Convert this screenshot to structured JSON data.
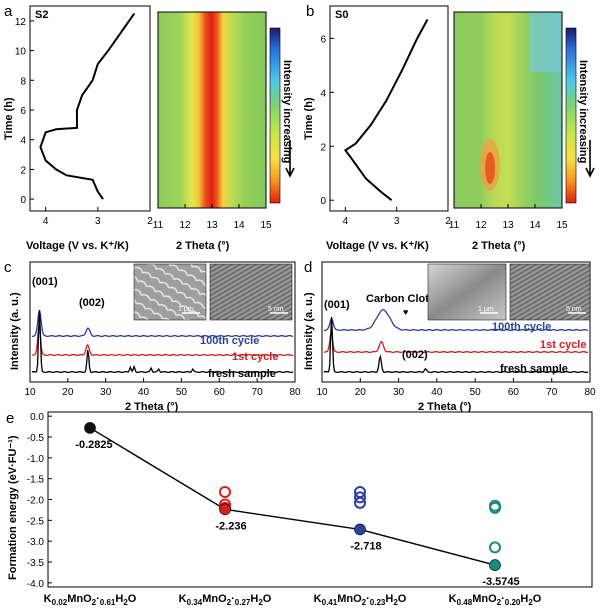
{
  "panels": {
    "a": {
      "letter": "a",
      "sample": "S2",
      "ylabel": "Time (h)",
      "xlabel": "Voltage (V vs. K⁺/K)",
      "heatmap_xlabel": "2 Theta (°)",
      "colorbar_label": "Intensity increasing"
    },
    "b": {
      "letter": "b",
      "sample": "S0",
      "ylabel": "Time (h)",
      "xlabel": "Voltage (V vs. K⁺/K)",
      "heatmap_xlabel": "2 Theta (°)",
      "colorbar_label": "Intensity increasing"
    },
    "c": {
      "letter": "c",
      "ylabel": "Intensity (a. u.)",
      "xlabel": "2 Theta (°)",
      "peaks": [
        "(001)",
        "(002)"
      ],
      "scale1": "1 μm",
      "scale2": "5 nm"
    },
    "d": {
      "letter": "d",
      "ylabel": "Intensity (a. u.)",
      "xlabel": "2 Theta (°)",
      "peaks": [
        "(001)",
        "(002)"
      ],
      "annotation": "Carbon Cloth",
      "scale1": "1 μm",
      "scale2": "5 nm"
    },
    "e": {
      "letter": "e",
      "ylabel": "Formation energy (eV·FU⁻¹)"
    }
  },
  "chart_data": [
    {
      "type": "line",
      "panel": "a-voltage",
      "xlabel": "Voltage (V vs. K+/K)",
      "ylabel": "Time (h)",
      "xlim": [
        4.3,
        2.0
      ],
      "ylim": [
        -0.8,
        13
      ],
      "x": [
        2.9,
        3.0,
        3.1,
        3.6,
        3.8,
        4.0,
        4.1,
        4.0,
        3.9,
        3.8,
        3.4,
        3.4,
        3.3,
        3.1,
        3.0,
        2.8,
        2.6,
        2.3
      ],
      "y": [
        0,
        0.5,
        1.3,
        1.6,
        2.0,
        2.6,
        3.5,
        4.5,
        4.6,
        4.7,
        4.8,
        6,
        7,
        8,
        9.1,
        10,
        11,
        12.5
      ],
      "x_ticks": [
        "4",
        "3",
        "2"
      ],
      "y_ticks": [
        "0",
        "2",
        "4",
        "6",
        "8",
        "10",
        "12"
      ]
    },
    {
      "type": "heatmap",
      "panel": "a-heatmap",
      "xlabel": "2 Theta (°)",
      "xlim": [
        11,
        15
      ],
      "x_ticks": [
        "11",
        "12",
        "13",
        "14",
        "15"
      ],
      "peak_center": 12.9
    },
    {
      "type": "line",
      "panel": "b-voltage",
      "xlabel": "Voltage (V vs. K+/K)",
      "ylabel": "Time (h)",
      "xlim": [
        4.3,
        2.0
      ],
      "ylim": [
        -0.4,
        7.2
      ],
      "x": [
        3.1,
        3.3,
        3.6,
        3.9,
        4.0,
        3.8,
        3.5,
        3.2,
        2.9,
        2.6,
        2.4
      ],
      "y": [
        0,
        0.3,
        0.8,
        1.6,
        1.85,
        2.1,
        2.8,
        3.7,
        4.8,
        6.0,
        6.7
      ],
      "x_ticks": [
        "4",
        "3",
        "2"
      ],
      "y_ticks": [
        "0",
        "2",
        "4",
        "6"
      ]
    },
    {
      "type": "heatmap",
      "panel": "b-heatmap",
      "xlabel": "2 Theta (°)",
      "xlim": [
        11,
        15
      ],
      "x_ticks": [
        "11",
        "12",
        "13",
        "14",
        "15"
      ],
      "peak_center": 12.5
    },
    {
      "type": "line",
      "panel": "c",
      "xlabel": "2 Theta (°)",
      "ylabel": "Intensity (a. u.)",
      "xlim": [
        10,
        80
      ],
      "x_ticks": [
        "10",
        "20",
        "30",
        "40",
        "50",
        "60",
        "70",
        "80"
      ],
      "series": [
        {
          "name": "100th cycle",
          "color": "#2b3f9e"
        },
        {
          "name": "1st cycle",
          "color": "#d42020"
        },
        {
          "name": "fresh sample",
          "color": "#000000"
        }
      ]
    },
    {
      "type": "line",
      "panel": "d",
      "xlabel": "2 Theta (°)",
      "ylabel": "Intensity (a. u.)",
      "xlim": [
        10,
        80
      ],
      "x_ticks": [
        "10",
        "20",
        "30",
        "40",
        "50",
        "60",
        "70",
        "80"
      ],
      "series": [
        {
          "name": "100th cycle",
          "color": "#2b3f9e"
        },
        {
          "name": "1st cycle",
          "color": "#d42020"
        },
        {
          "name": "fresh sample",
          "color": "#000000"
        }
      ]
    },
    {
      "type": "scatter",
      "panel": "e",
      "ylabel": "Formation energy (eV·FU⁻¹)",
      "ylim": [
        -4.1,
        0.1
      ],
      "y_ticks": [
        "-4.0",
        "-3.5",
        "-3.0",
        "-2.5",
        "-2.0",
        "-1.5",
        "-1.0",
        "-0.5",
        "0.0"
      ],
      "categories": [
        "K0.02MnO2·0.61H2O",
        "K0.34MnO2·0.27H2O",
        "K0.41MnO2·0.23H2O",
        "K0.48MnO2·0.20H2O"
      ],
      "minimum": [
        -0.2825,
        -2.236,
        -2.718,
        -3.5745
      ],
      "minimum_labels": [
        "-0.2825",
        "-2.236",
        "-2.718",
        "-3.5745"
      ],
      "others": [
        [],
        [
          -1.82,
          -2.12,
          -2.2
        ],
        [
          -1.82,
          -1.95,
          -2.08
        ],
        [
          -2.15,
          -2.2,
          -3.15
        ]
      ],
      "colors": [
        "#111111",
        "#d42020",
        "#2b3f9e",
        "#1a8a80"
      ]
    }
  ]
}
